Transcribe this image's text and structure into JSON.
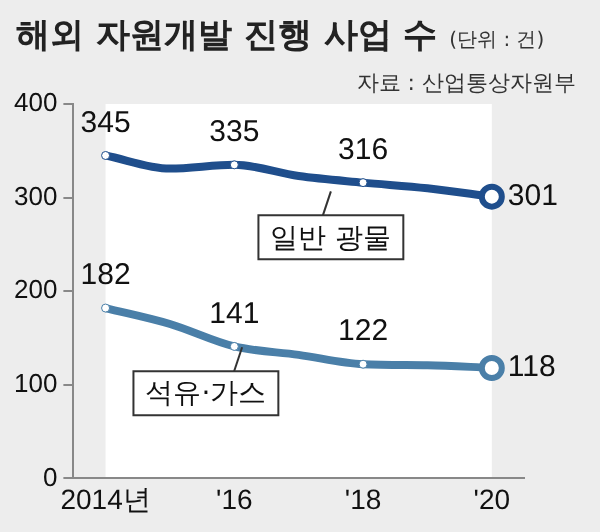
{
  "chart_data": {
    "type": "line",
    "title": "해외 자원개발 진행 사업 수",
    "subtitle": "(단위 : 건)",
    "annotations": [
      "자료 : 산업통상자원부"
    ],
    "categories": [
      "2014년",
      null,
      "'16",
      null,
      "'18",
      null,
      "'20"
    ],
    "series": [
      {
        "name": "일반 광물",
        "color": "#1f4e8c",
        "values": [
          345,
          331,
          335,
          323,
          316,
          310,
          301
        ],
        "value_labels": [
          "345",
          null,
          "335",
          null,
          "316",
          null,
          "301"
        ]
      },
      {
        "name": "석유·가스",
        "color": "#4a7fa8",
        "values": [
          182,
          165,
          141,
          132,
          122,
          121,
          118
        ],
        "value_labels": [
          "182",
          null,
          "141",
          null,
          "122",
          null,
          "118"
        ]
      }
    ],
    "ylim": [
      0,
      400
    ],
    "yticks": [
      0,
      100,
      200,
      300,
      400
    ],
    "grid": false,
    "legend": false,
    "marker": "circle"
  }
}
